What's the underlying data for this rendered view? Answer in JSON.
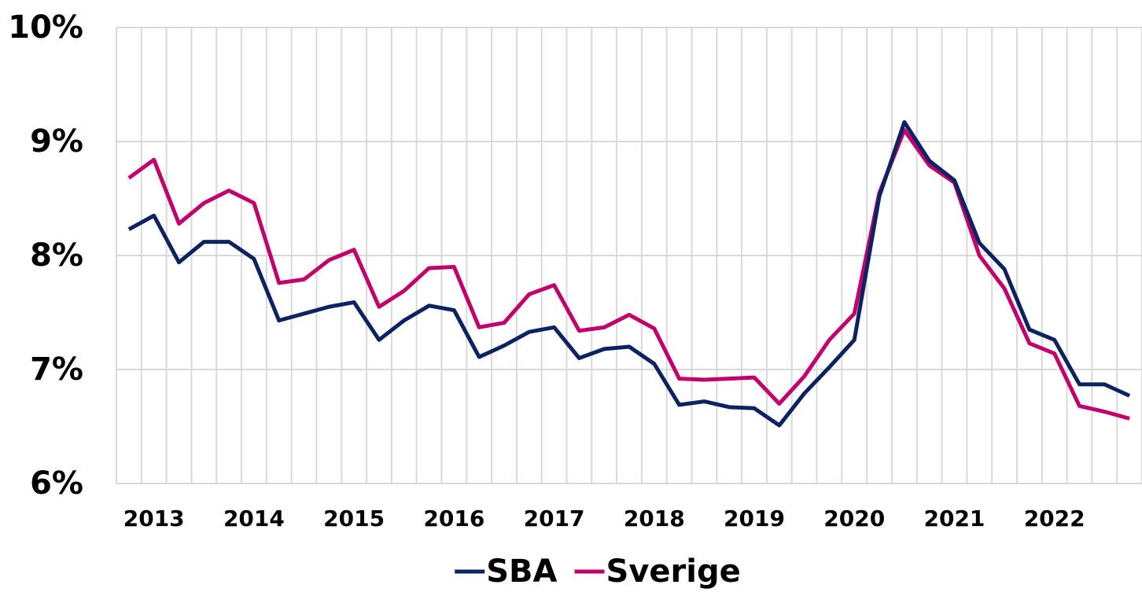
{
  "chart_data": {
    "type": "line",
    "categories": [
      null,
      "2013",
      null,
      null,
      null,
      "2014",
      null,
      null,
      null,
      "2015",
      null,
      null,
      null,
      "2016",
      null,
      null,
      null,
      "2017",
      null,
      null,
      null,
      "2018",
      null,
      null,
      null,
      "2019",
      null,
      null,
      null,
      "2020",
      null,
      null,
      null,
      "2021",
      null,
      null,
      null,
      "2022",
      null,
      null,
      null
    ],
    "series": [
      {
        "name": "SBA",
        "color": "#0d2260",
        "values": [
          8.23,
          8.35,
          7.94,
          8.12,
          8.12,
          7.97,
          7.43,
          7.49,
          7.55,
          7.59,
          7.26,
          7.43,
          7.56,
          7.52,
          7.11,
          7.21,
          7.33,
          7.37,
          7.1,
          7.18,
          7.2,
          7.05,
          6.69,
          6.72,
          6.67,
          6.66,
          6.51,
          6.79,
          7.02,
          7.26,
          8.52,
          9.17,
          8.83,
          8.66,
          8.11,
          7.88,
          7.35,
          7.26,
          6.87,
          6.87,
          6.77
        ]
      },
      {
        "name": "Sverige",
        "color": "#c2006b",
        "values": [
          8.68,
          8.84,
          8.28,
          8.46,
          8.57,
          8.46,
          7.76,
          7.79,
          7.96,
          8.05,
          7.55,
          7.69,
          7.89,
          7.9,
          7.37,
          7.41,
          7.66,
          7.74,
          7.34,
          7.37,
          7.48,
          7.36,
          6.92,
          6.91,
          6.92,
          6.93,
          6.7,
          6.94,
          7.26,
          7.49,
          8.55,
          9.1,
          8.79,
          8.64,
          8.0,
          7.71,
          7.23,
          7.14,
          6.68,
          6.63,
          6.57
        ]
      }
    ],
    "ylim": [
      6,
      10
    ],
    "yticks": [
      {
        "value": 6,
        "label": "6%"
      },
      {
        "value": 7,
        "label": "7%"
      },
      {
        "value": 8,
        "label": "8%"
      },
      {
        "value": 9,
        "label": "9%"
      },
      {
        "value": 10,
        "label": "10%"
      }
    ],
    "grid": true,
    "legend": "bottom"
  }
}
